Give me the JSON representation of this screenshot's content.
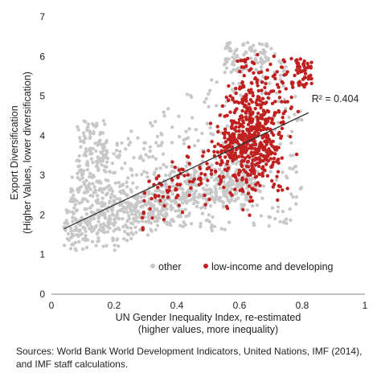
{
  "chart_data": {
    "type": "scatter",
    "xlabel_lines": [
      "UN Gender Inequality Index, re-estimated",
      "(higher values, more inequality)"
    ],
    "ylabel_lines": [
      "Export Diversification",
      "(Higher Values, lower diversification)"
    ],
    "xlim": [
      0,
      1
    ],
    "ylim": [
      0,
      7
    ],
    "xticks": [
      "0",
      "0.2",
      "0.4",
      "0.6",
      "0.8",
      "1"
    ],
    "yticks": [
      "0",
      "1",
      "2",
      "3",
      "4",
      "5",
      "6",
      "7"
    ],
    "grid": false,
    "legend_position": "bottom-right",
    "series": [
      {
        "name": "other",
        "color": "#c8c8c8"
      },
      {
        "name": "low-income and developing",
        "color": "#c0201f"
      }
    ],
    "trendline": {
      "x": [
        0.04,
        0.82
      ],
      "y": [
        1.65,
        4.58
      ],
      "color": "#333333"
    },
    "annotation": {
      "text": "R² = 0.404",
      "x": 0.83,
      "y": 4.85
    }
  },
  "source_note": "Sources: World Bank World Development Indicators, United Nations, IMF (2014), and IMF staff calculations."
}
